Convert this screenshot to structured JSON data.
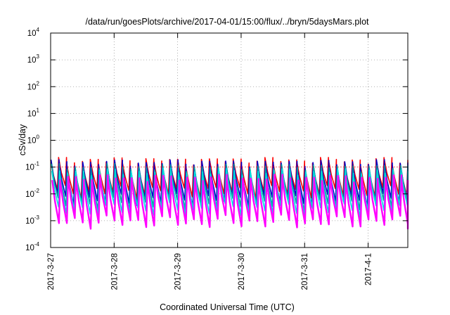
{
  "chart_data": {
    "type": "line",
    "title": "/data/run/goesPlots/archive/2017-04-01/15:00/flux/../bryn/5daysMars.plot",
    "xlabel": "Coordinated Universal Time (UTC)",
    "ylabel": "cSv/day",
    "yscale": "log",
    "ylim": [
      0.0001,
      10000
    ],
    "xlim": [
      "2017-03-27T00:00",
      "2017-04-01T15:00"
    ],
    "grid": true,
    "y_ticks": [
      {
        "base": "10",
        "exp": "-4",
        "value": 0.0001
      },
      {
        "base": "10",
        "exp": "-3",
        "value": 0.001
      },
      {
        "base": "10",
        "exp": "-2",
        "value": 0.01
      },
      {
        "base": "10",
        "exp": "-1",
        "value": 0.1
      },
      {
        "base": "10",
        "exp": "0",
        "value": 1
      },
      {
        "base": "10",
        "exp": "1",
        "value": 10
      },
      {
        "base": "10",
        "exp": "2",
        "value": 100
      },
      {
        "base": "10",
        "exp": "3",
        "value": 1000
      },
      {
        "base": "10",
        "exp": "4",
        "value": 10000
      }
    ],
    "x_ticks": [
      {
        "label": "2017-3-27",
        "t": "2017-03-27T00:00"
      },
      {
        "label": "2017-3-28",
        "t": "2017-03-28T00:00"
      },
      {
        "label": "2017-3-29",
        "t": "2017-03-29T00:00"
      },
      {
        "label": "2017-3-30",
        "t": "2017-03-30T00:00"
      },
      {
        "label": "2017-3-31",
        "t": "2017-03-31T00:00"
      },
      {
        "label": "2017-4-1",
        "t": "2017-04-01T00:00"
      }
    ],
    "series": [
      {
        "color": "#ff0000",
        "peak": 0.16,
        "trough": 0.012,
        "phase": 0.0
      },
      {
        "color": "#0000cc",
        "peak": 0.13,
        "trough": 0.006,
        "phase": 0.05
      },
      {
        "color": "#00a0a0",
        "peak": 0.09,
        "trough": 0.004,
        "phase": 0.1
      },
      {
        "color": "#00e0e0",
        "peak": 0.06,
        "trough": 0.0025,
        "phase": 0.15
      },
      {
        "color": "#ff00ff",
        "peak": 0.035,
        "trough": 0.0009,
        "phase": 0.2
      }
    ],
    "cycle_hours": 3,
    "reference_level": 0.1
  }
}
